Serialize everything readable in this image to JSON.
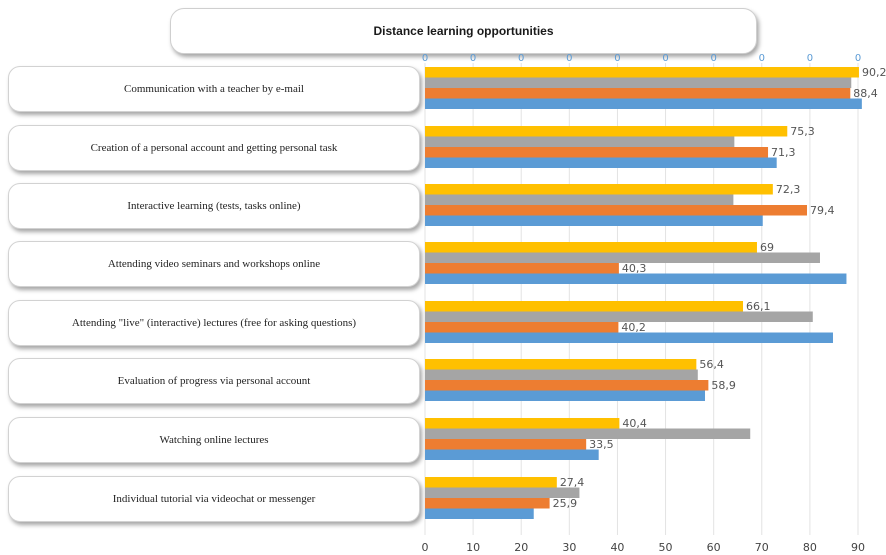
{
  "chart_data": {
    "type": "bar",
    "orientation": "horizontal",
    "title": "Distance learning opportunities",
    "categories": [
      "Communication with a teacher by e-mail",
      "Creation of a personal account and getting personal task",
      "Interactive learning (tests, tasks online)",
      "Attending video seminars and workshops online",
      "Attending \"live\" (interactive) lectures (free for asking questions)",
      "Evaluation of progress via personal account",
      "Watching online lectures",
      "Individual tutorial via videochat or messenger"
    ],
    "series": [
      {
        "color": "#ffc000",
        "values": [
          90.2,
          75.3,
          72.3,
          69,
          66.1,
          56.4,
          40.4,
          27.4
        ],
        "labels": [
          "90,2",
          "75,3",
          "72,3",
          "69",
          "66,1",
          "56,4",
          "40,4",
          "27,4"
        ]
      },
      {
        "color": "#a5a5a5",
        "values": [
          88.6,
          64.3,
          64.1,
          82.1,
          80.6,
          56.7,
          67.6,
          32.1
        ],
        "labels": []
      },
      {
        "color": "#ed7d31",
        "values": [
          88.4,
          71.3,
          79.4,
          40.3,
          40.2,
          58.9,
          33.5,
          25.9
        ],
        "labels": [
          "88,4",
          "71,3",
          "79,4",
          "40,3",
          "40,2",
          "58,9",
          "33,5",
          "25,9"
        ]
      },
      {
        "color": "#5b9bd5",
        "values": [
          90.8,
          73.1,
          70.2,
          87.6,
          84.8,
          58.2,
          36.1,
          22.6
        ],
        "labels": []
      }
    ],
    "xlim": [
      0,
      90
    ],
    "xticks": [
      "0",
      "10",
      "20",
      "30",
      "40",
      "50",
      "60",
      "70",
      "80",
      "90"
    ],
    "top_tick_labels": [
      "0",
      "0",
      "0",
      "0",
      "0",
      "0",
      "0",
      "0",
      "0",
      "0"
    ],
    "grid": "vertical"
  }
}
